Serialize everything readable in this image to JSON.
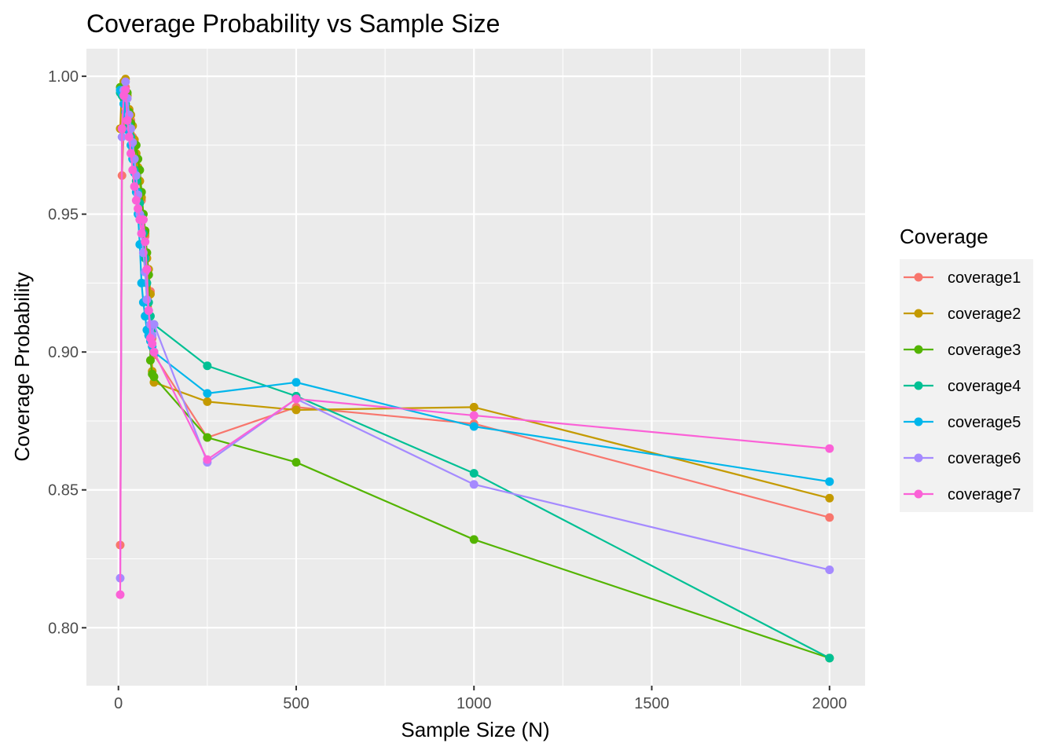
{
  "chart_data": {
    "type": "line",
    "title": "Coverage Probability vs Sample Size",
    "xlabel": "Sample Size (N)",
    "ylabel": "Coverage Probability",
    "xlim": [
      -90,
      2100
    ],
    "ylim": [
      0.779,
      1.01
    ],
    "x_ticks": [
      0,
      500,
      1000,
      1500,
      2000
    ],
    "x_tick_labels": [
      "0",
      "500",
      "1000",
      "1500",
      "2000"
    ],
    "y_ticks": [
      0.8,
      0.85,
      0.9,
      0.95,
      1.0
    ],
    "y_tick_labels": [
      "0.80",
      "0.85",
      "0.90",
      "0.95",
      "1.00"
    ],
    "grid": true,
    "legend_title": "Coverage",
    "legend_position": "right",
    "x": [
      5,
      10,
      15,
      20,
      25,
      30,
      35,
      40,
      45,
      50,
      55,
      60,
      65,
      70,
      75,
      80,
      85,
      90,
      95,
      100,
      250,
      500,
      1000,
      2000
    ],
    "series": [
      {
        "name": "coverage1",
        "color": "#F8766D",
        "values": [
          0.83,
          0.964,
          0.981,
          0.996,
          0.992,
          0.988,
          0.984,
          0.978,
          0.975,
          0.97,
          0.966,
          0.962,
          0.955,
          0.948,
          0.942,
          0.934,
          0.928,
          0.922,
          0.905,
          0.899,
          0.869,
          0.88,
          0.874,
          0.84
        ]
      },
      {
        "name": "coverage2",
        "color": "#C49A00",
        "values": [
          0.981,
          0.996,
          0.998,
          0.999,
          0.993,
          0.988,
          0.986,
          0.982,
          0.977,
          0.972,
          0.967,
          0.962,
          0.956,
          0.95,
          0.943,
          0.934,
          0.93,
          0.921,
          0.893,
          0.889,
          0.882,
          0.879,
          0.88,
          0.847
        ]
      },
      {
        "name": "coverage3",
        "color": "#53B400",
        "values": [
          0.996,
          0.994,
          0.992,
          0.99,
          0.994,
          0.987,
          0.983,
          0.973,
          0.975,
          0.975,
          0.97,
          0.966,
          0.958,
          0.95,
          0.944,
          0.936,
          0.928,
          0.897,
          0.892,
          0.891,
          0.869,
          0.86,
          0.832,
          0.789
        ]
      },
      {
        "name": "coverage4",
        "color": "#00C094",
        "values": [
          0.994,
          0.993,
          0.995,
          0.99,
          0.985,
          0.982,
          0.978,
          0.97,
          0.966,
          0.962,
          0.958,
          0.954,
          0.949,
          0.943,
          0.934,
          0.925,
          0.918,
          0.913,
          0.908,
          0.91,
          0.895,
          0.884,
          0.856,
          0.789
        ]
      },
      {
        "name": "coverage5",
        "color": "#00B6EB",
        "values": [
          0.995,
          0.994,
          0.99,
          0.987,
          0.985,
          0.98,
          0.975,
          0.97,
          0.965,
          0.958,
          0.95,
          0.939,
          0.925,
          0.918,
          0.913,
          0.908,
          0.906,
          0.904,
          0.902,
          0.9,
          0.885,
          0.889,
          0.873,
          0.853
        ]
      },
      {
        "name": "coverage6",
        "color": "#A58AFF",
        "values": [
          0.818,
          0.978,
          0.995,
          0.998,
          0.992,
          0.986,
          0.981,
          0.976,
          0.97,
          0.964,
          0.957,
          0.95,
          0.943,
          0.936,
          0.929,
          0.919,
          0.915,
          0.91,
          0.906,
          0.91,
          0.86,
          0.883,
          0.852,
          0.821
        ]
      },
      {
        "name": "coverage7",
        "color": "#FB61D7",
        "values": [
          0.812,
          0.981,
          0.993,
          0.995,
          0.984,
          0.978,
          0.972,
          0.966,
          0.96,
          0.955,
          0.952,
          0.948,
          0.943,
          0.948,
          0.94,
          0.93,
          0.915,
          0.905,
          0.903,
          0.9,
          0.861,
          0.883,
          0.877,
          0.865
        ]
      }
    ]
  }
}
